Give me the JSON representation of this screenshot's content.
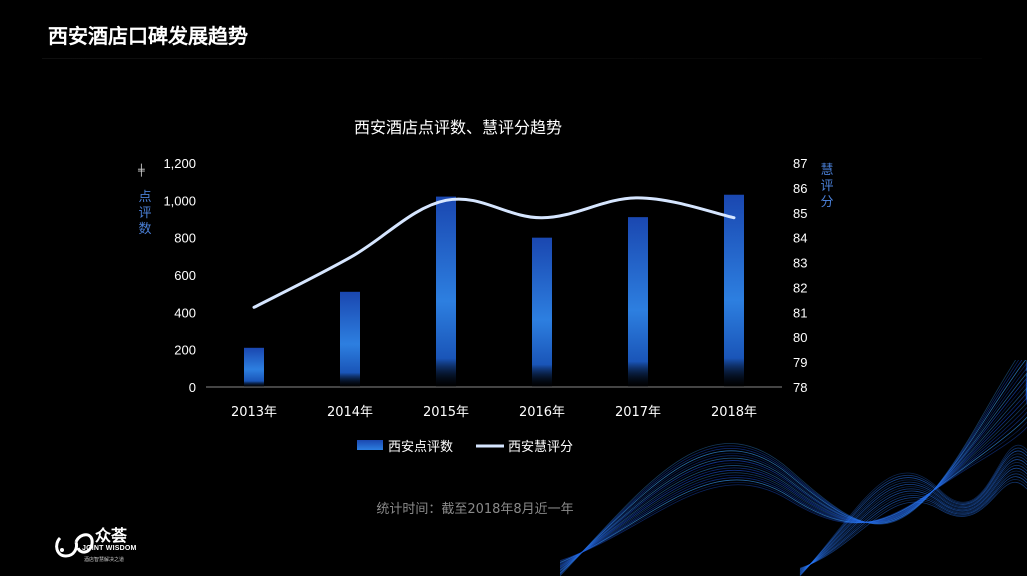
{
  "slide": {
    "title": "西安酒店口碑发展趋势",
    "footnote": "统计时间：截至2018年8月近一年"
  },
  "logo": {
    "name_cn": "众荟",
    "name_en": "JOINT WISDOM",
    "tagline": "酒店智慧解决之道"
  },
  "chart_data": {
    "type": "bar",
    "title": "西安酒店点评数、慧评分趋势",
    "categories": [
      "2013年",
      "2014年",
      "2015年",
      "2016年",
      "2017年",
      "2018年"
    ],
    "series": [
      {
        "name": "西安点评数",
        "type": "bar",
        "axis": "left",
        "values": [
          210,
          510,
          1020,
          800,
          910,
          1030
        ]
      },
      {
        "name": "西安慧评分",
        "type": "line",
        "axis": "right",
        "values": [
          81.2,
          83.2,
          85.5,
          84.8,
          85.6,
          84.8
        ]
      }
    ],
    "y_left": {
      "label": "点评数",
      "ylim": [
        0,
        1200
      ],
      "ticks": [
        "0",
        "200",
        "400",
        "600",
        "800",
        "1,000",
        "1,200"
      ]
    },
    "y_right": {
      "label": "慧评分",
      "ylim": [
        78,
        87
      ],
      "ticks": [
        "78",
        "79",
        "80",
        "81",
        "82",
        "83",
        "84",
        "85",
        "86",
        "87"
      ]
    },
    "legend_position": "bottom",
    "colors": {
      "bar_top": "#1a47b0",
      "bar_mid": "#2d7fe0",
      "line": "#d6e6ff",
      "axis_label": "#4a7fd6"
    }
  }
}
